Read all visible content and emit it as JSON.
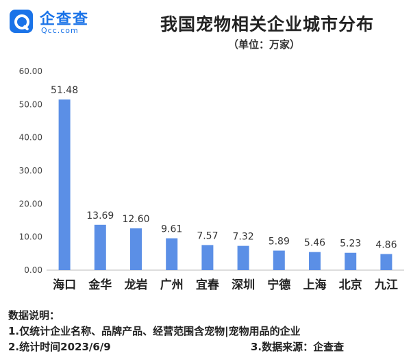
{
  "header": {
    "logo_name": "企查查",
    "logo_domain": "Qcc.com",
    "title": "我国宠物相关企业城市分布",
    "unit": "（单位：万家）"
  },
  "chart_data": {
    "type": "bar",
    "title": "我国宠物相关企业城市分布",
    "categories": [
      "海口",
      "金华",
      "龙岩",
      "广州",
      "宜春",
      "深圳",
      "宁德",
      "上海",
      "北京",
      "九江"
    ],
    "values": [
      51.48,
      13.69,
      12.6,
      9.61,
      7.57,
      7.32,
      5.89,
      5.46,
      5.23,
      4.86
    ],
    "value_labels": [
      "51.48",
      "13.69",
      "12.60",
      "9.61",
      "7.57",
      "7.32",
      "5.89",
      "5.46",
      "5.23",
      "4.86"
    ],
    "ylim": [
      0,
      60
    ],
    "yticks": [
      "0.00",
      "10.00",
      "20.00",
      "30.00",
      "40.00",
      "50.00",
      "60.00"
    ],
    "ytick_values": [
      0,
      10,
      20,
      30,
      40,
      50,
      60
    ],
    "bar_color": "#5b8fe6",
    "grid": false
  },
  "notes": {
    "heading": "数据说明：",
    "line1": "1.仅统计企业名称、品牌产品、经营范围含宠物|宠物用品的企业",
    "line2": "2.统计时间2023/6/9",
    "line3": "3.数据来源：企查查"
  }
}
